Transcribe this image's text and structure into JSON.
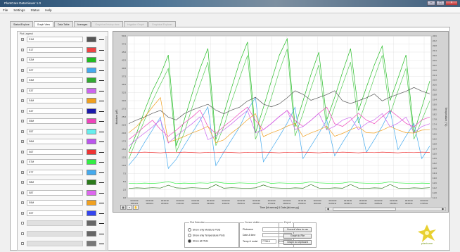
{
  "window": {
    "title": "PlantCare DataViewer 1.0"
  },
  "menu": [
    "File",
    "Settings",
    "Status",
    "Help"
  ],
  "tabs": [
    {
      "label": "Status/Explore",
      "state": "normal"
    },
    {
      "label": "Graph View",
      "state": "active"
    },
    {
      "label": "Data Table",
      "state": "normal"
    },
    {
      "label": "Averages",
      "state": "normal"
    },
    {
      "label": "Graphical history view",
      "state": "disabled"
    },
    {
      "label": "Irrigation Graph",
      "state": "disabled"
    },
    {
      "label": "Graphical Explorer",
      "state": "disabled"
    }
  ],
  "legend": {
    "title": "Plot Legend",
    "rows": [
      {
        "name": "S1M",
        "color": "#555555",
        "checked": true
      },
      {
        "name": "S1T",
        "color": "#ee4444",
        "checked": true
      },
      {
        "name": "S2M",
        "color": "#22bb22",
        "checked": true
      },
      {
        "name": "S2T",
        "color": "#44aaee",
        "checked": true
      },
      {
        "name": "S3M",
        "color": "#33aa33",
        "checked": true
      },
      {
        "name": "S3T",
        "color": "#cc66ee",
        "checked": true
      },
      {
        "name": "S4M",
        "color": "#f0a020",
        "checked": true
      },
      {
        "name": "S4T",
        "color": "#1a1aaa",
        "checked": true
      },
      {
        "name": "S5M",
        "color": "#ee44bb",
        "checked": true
      },
      {
        "name": "S5T",
        "color": "#66eeee",
        "checked": true
      },
      {
        "name": "S6M",
        "color": "#bb55ee",
        "checked": true
      },
      {
        "name": "S6T",
        "color": "#ee3333",
        "checked": true
      },
      {
        "name": "S7M",
        "color": "#33ee44",
        "checked": true
      },
      {
        "name": "S7T",
        "color": "#44aaee",
        "checked": true
      },
      {
        "name": "S8M",
        "color": "#2a7a1a",
        "checked": true
      },
      {
        "name": "S8T",
        "color": "#dd66ee",
        "checked": true
      },
      {
        "name": "S9M",
        "color": "#f0a020",
        "checked": true
      },
      {
        "name": "S9T",
        "color": "#3344ee",
        "checked": true
      },
      {
        "name": "",
        "color": "#666666",
        "checked": false,
        "disabled": true
      },
      {
        "name": "",
        "color": "#666666",
        "checked": false,
        "disabled": true
      },
      {
        "name": "",
        "color": "#777777",
        "checked": false,
        "disabled": true
      }
    ]
  },
  "plot_selection": {
    "title": "Plot Selection",
    "options": [
      "Show only Moisture Plots",
      "Show only Temperature Plots",
      "Show all Plots"
    ],
    "selected": 2
  },
  "cursor": {
    "title": "Cursor visible",
    "position_label": "Plotname",
    "position_value": "",
    "datetime_label": "Date & time",
    "datetime_value": "",
    "value_label": "Temp & moist",
    "value_1": "7738.6",
    "value_2": "0.000"
  },
  "export": {
    "title": "Export",
    "buttons": [
      "Current View to csv",
      "Graph to File",
      "Graph to Clipboard"
    ]
  },
  "zoom_tools": [
    "▦",
    "⌕",
    "✋"
  ],
  "logo_text": "plantcare",
  "chart_data": {
    "type": "line",
    "ylabel": "Moisture (pF)",
    "y2label": "Temperature (°C)",
    "xlabel": "Time [hh:mm:ss] & Date [dd.mm.yy]",
    "yticks": [
      "0.0",
      "2.5",
      "5.0",
      "7.5",
      "10.0",
      "12.5",
      "15.0",
      "17.5",
      "20.0",
      "22.5",
      "25.0",
      "27.5",
      "30.0",
      "32.5",
      "35.0",
      "37.5",
      "40.0",
      "42.5",
      "45.0",
      "47.5",
      "50.0"
    ],
    "y2ticks": [
      "11.4",
      "11.8",
      "12.2",
      "12.6",
      "13.0",
      "13.4",
      "13.8",
      "14.2",
      "14.6",
      "15.0",
      "15.4",
      "15.8",
      "16.2",
      "16.6",
      "17.0",
      "17.4",
      "17.8",
      "18.2",
      "18.6",
      "19.0",
      "19.4",
      "19.8",
      "20.2",
      "20.6",
      "21.0",
      "21.4",
      "21.8",
      "22.2",
      "22.6",
      "23.0",
      "23.4",
      "23.8",
      "24.2",
      "24.6"
    ],
    "xticks": [
      [
        "00:00:00",
        "18/04/11"
      ],
      [
        "00:00:00",
        "19/04/11"
      ],
      [
        "00:00:00",
        "20/04/11"
      ],
      [
        "00:00:00",
        "21/04/11"
      ],
      [
        "00:00:00",
        "22/04/11"
      ],
      [
        "00:00:00",
        "23/04/11"
      ],
      [
        "00:00:00",
        "24/04/11"
      ],
      [
        "00:00:00",
        "25/04/11"
      ],
      [
        "00:00:00",
        "26/04/11"
      ],
      [
        "00:00:00",
        "27/04/11"
      ],
      [
        "00:00:00",
        "28/04/11"
      ],
      [
        "00:00:00",
        "29/04/11"
      ],
      [
        "00:00:00",
        "30/04/11"
      ],
      [
        "00:00:00",
        "01/05/11"
      ],
      [
        "00:00:00",
        "02/05/11"
      ],
      [
        "00:00:00",
        "03/05/11"
      ],
      [
        "00:00:00",
        "04/05/11"
      ],
      [
        "00:00:00",
        "05/05/11"
      ],
      [
        "00:00:00",
        "06/05/11"
      ],
      [
        "00:00:00",
        "07/05/11"
      ]
    ],
    "ylim": [
      0,
      50
    ],
    "grid": true,
    "series": [
      {
        "color": "#22bb22",
        "values": [
          14,
          20,
          27,
          33,
          38,
          44,
          16,
          24,
          32,
          40,
          46,
          18,
          26,
          34,
          42,
          48,
          20,
          28,
          36,
          44,
          49,
          22,
          30,
          38,
          45,
          24,
          31,
          39,
          46,
          27,
          34,
          41,
          47,
          30,
          37,
          44,
          20,
          28,
          36
        ]
      },
      {
        "color": "#55cc55",
        "values": [
          12,
          18,
          24,
          30,
          35,
          40,
          14,
          20,
          28,
          35,
          42,
          16,
          22,
          30,
          37,
          44,
          18,
          24,
          31,
          39,
          46,
          19,
          26,
          34,
          41,
          21,
          28,
          35,
          42,
          23,
          30,
          37,
          44,
          26,
          33,
          40,
          18,
          24,
          30
        ]
      },
      {
        "color": "#44aaee",
        "values": [
          10,
          13,
          17,
          21,
          25,
          9,
          12,
          16,
          20,
          24,
          28,
          10,
          14,
          18,
          22,
          27,
          31,
          11,
          15,
          19,
          23,
          28,
          12,
          16,
          20,
          24,
          13,
          17,
          21,
          25,
          14,
          18,
          22,
          27,
          15,
          19,
          23,
          12,
          16
        ]
      },
      {
        "color": "#555555",
        "values": [
          23,
          24,
          25,
          26,
          27,
          25,
          24,
          26,
          27,
          28,
          29,
          27,
          26,
          27,
          28,
          30,
          31,
          29,
          28,
          29,
          31,
          33,
          32,
          30,
          31,
          32,
          33,
          30,
          29,
          30,
          31,
          32,
          30,
          31,
          32,
          33,
          34,
          33,
          32
        ]
      },
      {
        "color": "#ee44bb",
        "values": [
          18,
          20,
          22,
          24,
          21,
          19,
          21,
          23,
          25,
          27,
          22,
          20,
          22,
          24,
          26,
          28,
          24,
          21,
          23,
          25,
          27,
          24,
          22,
          24,
          26,
          28,
          23,
          22,
          24,
          26,
          24,
          23,
          25,
          27,
          25,
          23,
          22,
          24,
          25
        ]
      },
      {
        "color": "#f0a020",
        "values": [
          20,
          22,
          25,
          28,
          31,
          17,
          18,
          19,
          20,
          21,
          22,
          17,
          18,
          20,
          22,
          24,
          26,
          19,
          20,
          21,
          22,
          23,
          19,
          20,
          21,
          22,
          19,
          20,
          21,
          22,
          20,
          20,
          21,
          22,
          21,
          20,
          20,
          21,
          21
        ]
      },
      {
        "color": "#cc66ee",
        "values": [
          16,
          18,
          20,
          22,
          24,
          17,
          19,
          21,
          23,
          25,
          18,
          19,
          21,
          23,
          25,
          27,
          20,
          21,
          23,
          25,
          27,
          21,
          22,
          24,
          26,
          21,
          22,
          24,
          25,
          21,
          23,
          24,
          26,
          22,
          23,
          25,
          20,
          22,
          23
        ]
      },
      {
        "color": "#ee3333",
        "values": [
          14,
          14,
          14,
          14,
          14,
          14,
          14,
          14,
          14,
          14,
          14,
          14,
          14,
          14,
          14,
          14,
          14,
          14,
          14,
          14,
          14,
          14,
          14,
          14,
          14,
          14,
          14,
          14,
          14,
          14,
          14,
          14,
          14,
          14,
          14,
          14,
          14,
          14,
          14
        ]
      },
      {
        "color": "#2a7a1a",
        "values": [
          3,
          3,
          3,
          3,
          3,
          4,
          3,
          3,
          3,
          3,
          3,
          4,
          3,
          3,
          3,
          3,
          3,
          4,
          3,
          3,
          3,
          3,
          3,
          4,
          3,
          3,
          3,
          3,
          4,
          3,
          3,
          3,
          3,
          4,
          3,
          3,
          3,
          3,
          3
        ]
      },
      {
        "color": "#33ee44",
        "values": [
          4.5,
          4.5,
          4.5,
          4.5,
          4.5,
          5,
          4.5,
          4.5,
          4.5,
          4.5,
          4.5,
          5,
          4.5,
          4.5,
          4.5,
          4.5,
          4.5,
          5,
          4.5,
          4.5,
          4.5,
          4.5,
          4.5,
          5,
          4.5,
          4.5,
          4.5,
          4.5,
          5,
          4.5,
          4.5,
          4.5,
          4.5,
          5,
          4.5,
          4.5,
          4.5,
          4.5,
          4.5
        ]
      }
    ]
  }
}
